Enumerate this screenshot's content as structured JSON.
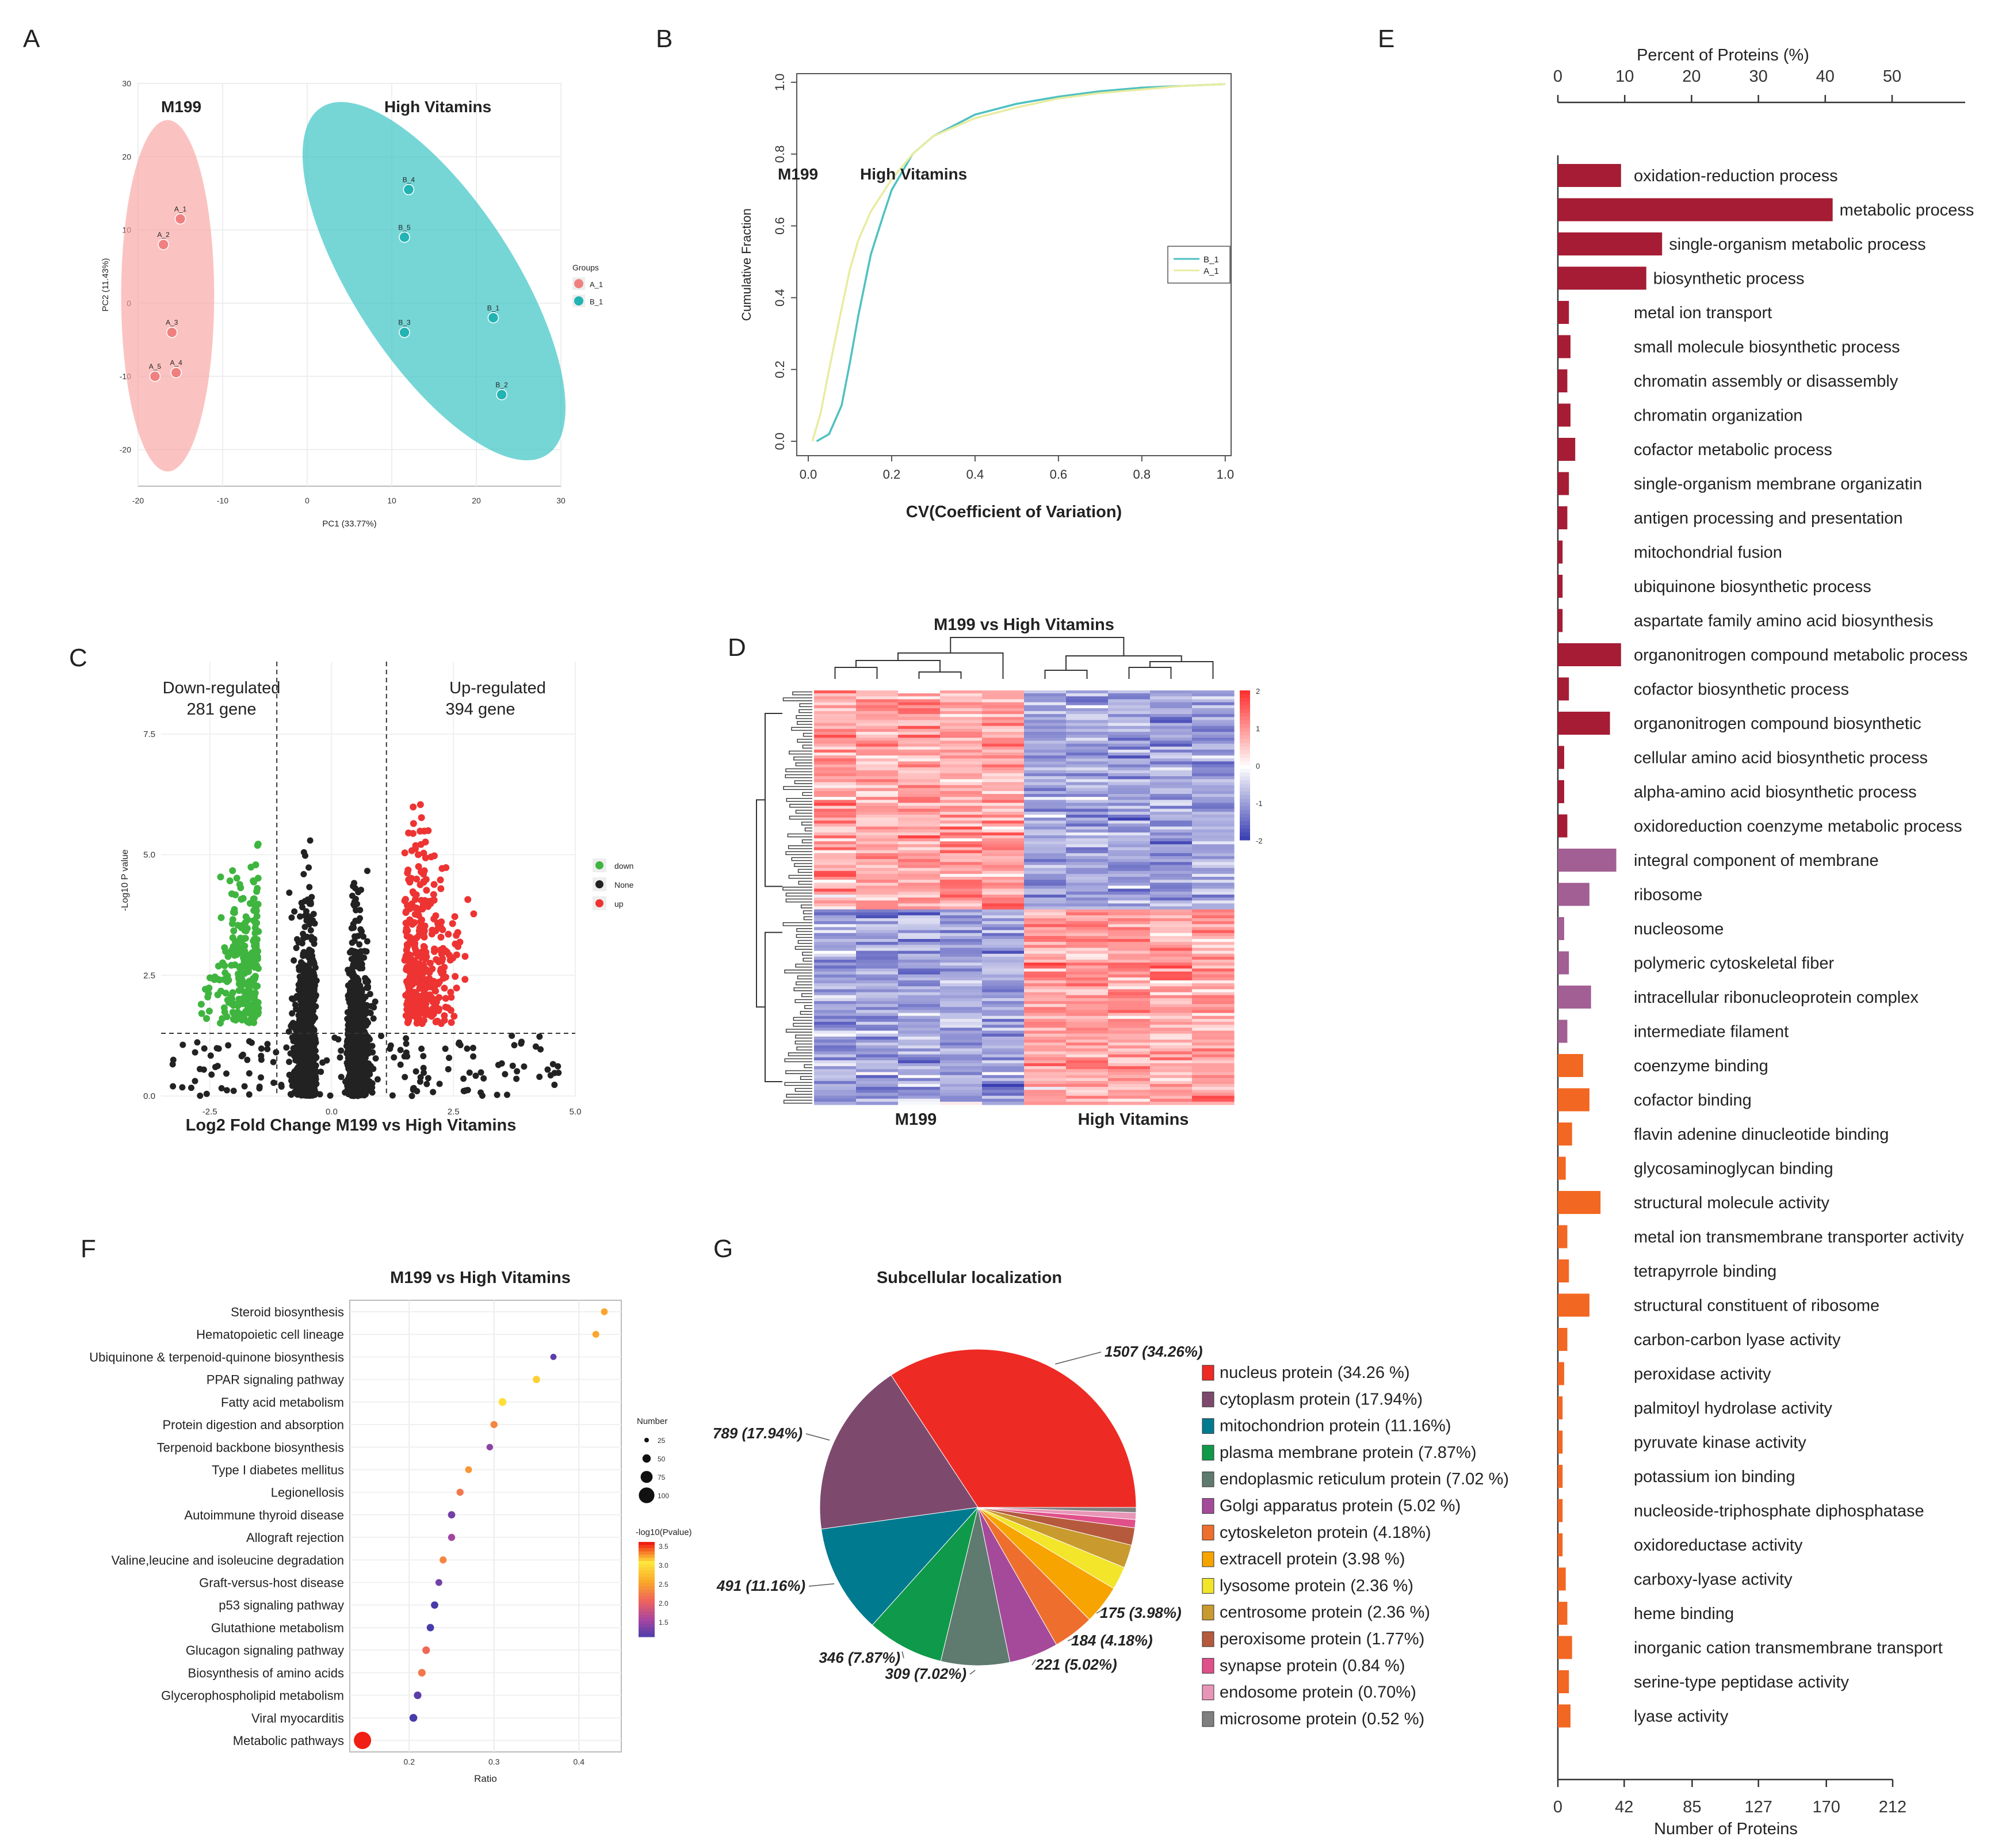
{
  "panels": {
    "A": "A",
    "B": "B",
    "C": "C",
    "D": "D",
    "E": "E",
    "F": "F",
    "G": "G"
  },
  "chart_data": [
    {
      "panel": "A",
      "type": "scatter",
      "xlabel": "PC1 (33.77%)",
      "ylabel": "PC2 (11.43%)",
      "xlim": [
        -20,
        30
      ],
      "ylim": [
        -25,
        30
      ],
      "xticks": [
        -20,
        -10,
        0,
        10,
        20,
        30
      ],
      "yticks": [
        -20,
        -10,
        0,
        10,
        20,
        30
      ],
      "group_labels": {
        "g1": "M199",
        "g2": "High Vitamins"
      },
      "legend_title": "Groups",
      "series": [
        {
          "name": "A_1",
          "color": "#f08080",
          "points": [
            {
              "label": "A_1",
              "x": -15,
              "y": 11.5
            },
            {
              "label": "A_2",
              "x": -17,
              "y": 8
            },
            {
              "label": "A_3",
              "x": -16,
              "y": -4
            },
            {
              "label": "A_5",
              "x": -18,
              "y": -10
            },
            {
              "label": "A_4",
              "x": -15.5,
              "y": -9.5
            }
          ]
        },
        {
          "name": "B_1",
          "color": "#22b3b3",
          "points": [
            {
              "label": "B_4",
              "x": 12,
              "y": 15.5
            },
            {
              "label": "B_5",
              "x": 11.5,
              "y": 9
            },
            {
              "label": "B_3",
              "x": 11.5,
              "y": -4
            },
            {
              "label": "B_1",
              "x": 22,
              "y": -2
            },
            {
              "label": "B_2",
              "x": 23,
              "y": -12.5
            }
          ]
        }
      ]
    },
    {
      "panel": "B",
      "type": "line",
      "xlabel": "CV(Coefficient of Variation)",
      "ylabel": "Cumulative Fraction",
      "xlim": [
        0,
        1
      ],
      "ylim": [
        0,
        1
      ],
      "xticks": [
        "0.0",
        "0.2",
        "0.4",
        "0.6",
        "0.8",
        "1.0"
      ],
      "yticks": [
        "0.0",
        "0.2",
        "0.4",
        "0.6",
        "0.8",
        "1.0"
      ],
      "annotations": [
        "M199",
        "High Vitamins"
      ],
      "series": [
        {
          "name": "B_1",
          "color": "#4fc0c0",
          "x": [
            0.02,
            0.05,
            0.08,
            0.1,
            0.12,
            0.15,
            0.18,
            0.2,
            0.25,
            0.3,
            0.4,
            0.5,
            0.6,
            0.7,
            0.8,
            0.9,
            1.0
          ],
          "y": [
            0,
            0.02,
            0.1,
            0.22,
            0.35,
            0.52,
            0.63,
            0.7,
            0.8,
            0.85,
            0.91,
            0.94,
            0.96,
            0.975,
            0.985,
            0.99,
            0.995
          ]
        },
        {
          "name": "A_1",
          "color": "#e8eca0",
          "x": [
            0.01,
            0.03,
            0.05,
            0.08,
            0.1,
            0.12,
            0.15,
            0.2,
            0.25,
            0.3,
            0.4,
            0.5,
            0.6,
            0.7,
            0.8,
            0.9,
            1.0
          ],
          "y": [
            0,
            0.08,
            0.2,
            0.37,
            0.48,
            0.56,
            0.64,
            0.73,
            0.8,
            0.85,
            0.9,
            0.93,
            0.955,
            0.97,
            0.98,
            0.99,
            0.995
          ]
        }
      ]
    },
    {
      "panel": "C",
      "type": "scatter",
      "xlabel": "Log2 Fold Change M199 vs High Vitamins",
      "ylabel": "-Log10 P value",
      "xlim": [
        -3.5,
        5
      ],
      "ylim": [
        0,
        9
      ],
      "xticks": [
        "-2.5",
        "0.0",
        "2.5",
        "5.0"
      ],
      "yticks": [
        "0.0",
        "2.5",
        "5.0",
        "7.5"
      ],
      "annotations": {
        "down_title": "Down-regulated",
        "down_count": "281 gene",
        "up_title": "Up-regulated",
        "up_count": "394 gene"
      },
      "legend": [
        {
          "name": "down",
          "color": "#3fb53f"
        },
        {
          "name": "None",
          "color": "#222222"
        },
        {
          "name": "up",
          "color": "#ee3333"
        }
      ],
      "thresholds": {
        "fc": [
          -1.5,
          1.5
        ],
        "p": 1.3
      }
    },
    {
      "panel": "D",
      "type": "heatmap",
      "title": "M199 vs High Vitamins",
      "group_labels": [
        "M199",
        "High Vitamins"
      ],
      "colorbar_ticks": [
        "2",
        "1",
        "0",
        "-1",
        "-2"
      ]
    },
    {
      "panel": "E",
      "type": "bar",
      "top_axis_label": "Percent of Proteins (%)",
      "top_ticks": [
        "0",
        "10",
        "20",
        "30",
        "40",
        "50"
      ],
      "bottom_axis_label": "Number of Proteins",
      "bottom_ticks": [
        "0",
        "42",
        "85",
        "127",
        "170",
        "212"
      ],
      "xlim": [
        0,
        212
      ],
      "colors": {
        "BP": "#a61c35",
        "CC": "#a25f93",
        "MF": "#f26722"
      },
      "categories": [
        {
          "label": "oxidation-reduction process",
          "value": 40,
          "group": "BP"
        },
        {
          "label": "metabolic process",
          "value": 174,
          "group": "BP"
        },
        {
          "label": "single-organism metabolic process",
          "value": 66,
          "group": "BP"
        },
        {
          "label": "biosynthetic process",
          "value": 56,
          "group": "BP"
        },
        {
          "label": "metal ion transport",
          "value": 7,
          "group": "BP"
        },
        {
          "label": "small molecule biosynthetic process",
          "value": 8,
          "group": "BP"
        },
        {
          "label": "chromatin assembly or disassembly",
          "value": 6,
          "group": "BP"
        },
        {
          "label": "chromatin organization",
          "value": 8,
          "group": "BP"
        },
        {
          "label": "cofactor metabolic process",
          "value": 11,
          "group": "BP"
        },
        {
          "label": "single-organism membrane organizatin",
          "value": 7,
          "group": "BP"
        },
        {
          "label": "antigen processing and presentation",
          "value": 6,
          "group": "BP"
        },
        {
          "label": "mitochondrial fusion",
          "value": 3,
          "group": "BP"
        },
        {
          "label": "ubiquinone biosynthetic process",
          "value": 3,
          "group": "BP"
        },
        {
          "label": "aspartate family amino acid biosynthesis",
          "value": 3,
          "group": "BP"
        },
        {
          "label": "organonitrogen compound metabolic process",
          "value": 40,
          "group": "BP"
        },
        {
          "label": "cofactor biosynthetic process",
          "value": 7,
          "group": "BP"
        },
        {
          "label": "organonitrogen compound biosynthetic",
          "value": 33,
          "group": "BP"
        },
        {
          "label": "cellular amino acid biosynthetic process",
          "value": 4,
          "group": "BP"
        },
        {
          "label": "alpha-amino acid biosynthetic process",
          "value": 4,
          "group": "BP"
        },
        {
          "label": "oxidoreduction coenzyme metabolic process",
          "value": 6,
          "group": "BP"
        },
        {
          "label": "integral component of membrane",
          "value": 37,
          "group": "CC"
        },
        {
          "label": "ribosome",
          "value": 20,
          "group": "CC"
        },
        {
          "label": "nucleosome",
          "value": 4,
          "group": "CC"
        },
        {
          "label": "polymeric cytoskeletal fiber",
          "value": 7,
          "group": "CC"
        },
        {
          "label": "intracellular ribonucleoprotein complex",
          "value": 21,
          "group": "CC"
        },
        {
          "label": "intermediate filament",
          "value": 6,
          "group": "CC"
        },
        {
          "label": "coenzyme binding",
          "value": 16,
          "group": "MF"
        },
        {
          "label": "cofactor binding",
          "value": 20,
          "group": "MF"
        },
        {
          "label": "flavin adenine dinucleotide binding",
          "value": 9,
          "group": "MF"
        },
        {
          "label": "glycosaminoglycan binding",
          "value": 5,
          "group": "MF"
        },
        {
          "label": "structural molecule activity",
          "value": 27,
          "group": "MF"
        },
        {
          "label": "metal ion transmembrane transporter activity",
          "value": 6,
          "group": "MF"
        },
        {
          "label": "tetrapyrrole binding",
          "value": 7,
          "group": "MF"
        },
        {
          "label": "structural constituent of ribosome",
          "value": 20,
          "group": "MF"
        },
        {
          "label": "carbon-carbon lyase activity",
          "value": 6,
          "group": "MF"
        },
        {
          "label": "peroxidase activity",
          "value": 4,
          "group": "MF"
        },
        {
          "label": "palmitoyl hydrolase activity",
          "value": 3,
          "group": "MF"
        },
        {
          "label": "pyruvate kinase activity",
          "value": 3,
          "group": "MF"
        },
        {
          "label": "potassium ion binding",
          "value": 3,
          "group": "MF"
        },
        {
          "label": "nucleoside-triphosphate diphosphatase",
          "value": 3,
          "group": "MF"
        },
        {
          "label": "oxidoreductase activity",
          "value": 3,
          "group": "MF"
        },
        {
          "label": "carboxy-lyase activity",
          "value": 5,
          "group": "MF"
        },
        {
          "label": "heme binding",
          "value": 6,
          "group": "MF"
        },
        {
          "label": "inorganic cation transmembrane transport",
          "value": 9,
          "group": "MF"
        },
        {
          "label": "serine-type peptidase activity",
          "value": 7,
          "group": "MF"
        },
        {
          "label": "lyase activity",
          "value": 8,
          "group": "MF"
        }
      ]
    },
    {
      "panel": "F",
      "type": "scatter",
      "title": "M199 vs High Vitamins",
      "xlabel": "Ratio",
      "xlim": [
        0.13,
        0.45
      ],
      "xticks": [
        "0.2",
        "0.3",
        "0.4"
      ],
      "size_legend_title": "Number",
      "size_legend": [
        "25",
        "50",
        "75",
        "100"
      ],
      "color_legend_title": "-log10(Pvalue)",
      "color_legend": [
        "3.5",
        "3.0",
        "2.5",
        "2.0",
        "1.5"
      ],
      "categories": [
        "Steroid biosynthesis",
        "Hematopoietic cell lineage",
        "Ubiquinone & terpenoid-quinone biosynthesis",
        "PPAR signaling pathway",
        "Fatty acid metabolism",
        "Protein digestion and absorption",
        "Terpenoid backbone biosynthesis",
        "Type I diabetes mellitus",
        "Legionellosis",
        "Autoimmune thyroid disease",
        "Allograft rejection",
        "Valine,leucine and isoleucine degradation",
        "Graft-versus-host disease",
        "p53 signaling pathway",
        "Glutathione metabolism",
        "Glucagon signaling pathway",
        "Biosynthesis of amino acids",
        "Glycerophospholipid metabolism",
        "Viral myocarditis",
        "Metabolic pathways"
      ],
      "ratio": [
        0.43,
        0.42,
        0.37,
        0.35,
        0.31,
        0.3,
        0.295,
        0.27,
        0.26,
        0.25,
        0.25,
        0.24,
        0.235,
        0.23,
        0.225,
        0.22,
        0.215,
        0.21,
        0.205,
        0.145
      ],
      "count": [
        6,
        6,
        4,
        8,
        10,
        7,
        5,
        6,
        7,
        8,
        7,
        7,
        6,
        8,
        8,
        9,
        9,
        9,
        10,
        100
      ],
      "neglog10p": [
        3.3,
        3.3,
        1.5,
        3.0,
        3.1,
        2.5,
        1.7,
        2.6,
        2.4,
        1.6,
        1.8,
        2.5,
        1.6,
        1.4,
        1.4,
        2.3,
        2.4,
        1.5,
        1.4,
        3.6
      ]
    },
    {
      "panel": "G",
      "type": "pie",
      "title": "Subcellular localization",
      "slices": [
        {
          "name": "nucleus protein",
          "legend": "nucleus protein (34.26 %)",
          "value": 1507,
          "label": "1507 (34.26%)",
          "color": "#ee2a24"
        },
        {
          "name": "cytoplasm protein",
          "legend": "cytoplasm protein (17.94%)",
          "value": 789,
          "label": "789 (17.94%)",
          "color": "#7d4a6e"
        },
        {
          "name": "mitochondrion protein",
          "legend": "mitochondrion protein (11.16%)",
          "value": 491,
          "label": "491 (11.16%)",
          "color": "#007a8e"
        },
        {
          "name": "plasma membrane protein",
          "legend": "plasma membrane protein (7.87%)",
          "value": 346,
          "label": "346 (7.87%)",
          "color": "#0e9a4a"
        },
        {
          "name": "endoplasmic reticulum protein",
          "legend": "endoplasmic reticulum protein (7.02 %)",
          "value": 309,
          "label": "309 (7.02%)",
          "color": "#5f7a6e"
        },
        {
          "name": "Golgi apparatus protein",
          "legend": "Golgi apparatus protein (5.02 %)",
          "value": 221,
          "label": "221 (5.02%)",
          "color": "#a54a9a"
        },
        {
          "name": "cytoskeleton protein",
          "legend": "cytoskeleton protein (4.18%)",
          "value": 184,
          "label": "184 (4.18%)",
          "color": "#ee6f2d"
        },
        {
          "name": "extracell protein",
          "legend": "extracell protein (3.98 %)",
          "value": 175,
          "label": "175 (3.98%)",
          "color": "#f7a400"
        },
        {
          "name": "lysosome protein",
          "legend": "lysosome protein (2.36 %)",
          "value": 104,
          "label": "",
          "color": "#f2e52a"
        },
        {
          "name": "centrosome protein",
          "legend": "centrosome protein (2.36 %)",
          "value": 104,
          "label": "",
          "color": "#c99a2e"
        },
        {
          "name": "peroxisome protein",
          "legend": "peroxisome protein (1.77%)",
          "value": 78,
          "label": "",
          "color": "#b55a3d"
        },
        {
          "name": "synapse protein",
          "legend": "synapse protein (0.84 %)",
          "value": 37,
          "label": "",
          "color": "#e0508a"
        },
        {
          "name": "endosome protein",
          "legend": "endosome protein (0.70%)",
          "value": 31,
          "label": "",
          "color": "#e895b8"
        },
        {
          "name": "microsome protein",
          "legend": "microsome protein (0.52 %)",
          "value": 23,
          "label": "",
          "color": "#7f7f7f"
        }
      ]
    }
  ]
}
